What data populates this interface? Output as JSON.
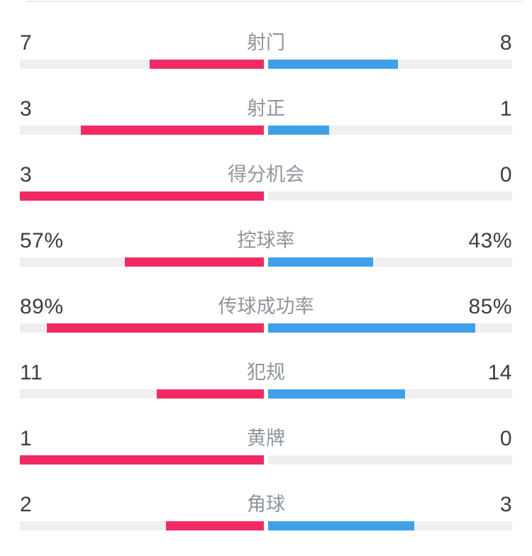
{
  "page": {
    "background": "#ffffff",
    "divider_color": "#ebebeb"
  },
  "chart_data": {
    "type": "bar",
    "orientation": "horizontal-opposed",
    "description": "Football match statistics comparison, home (left, pink) vs away (right, blue); each bar pair splits from the center proportionally to the two values",
    "categories": [
      "射门",
      "射正",
      "得分机会",
      "控球率",
      "传球成功率",
      "犯规",
      "黄牌",
      "角球"
    ],
    "series": [
      {
        "name": "home",
        "color": "#f22a64",
        "values": [
          "7",
          "3",
          "3",
          "57%",
          "89%",
          "11",
          "1",
          "2"
        ]
      },
      {
        "name": "away",
        "color": "#409fe9",
        "values": [
          "8",
          "1",
          "0",
          "43%",
          "85%",
          "14",
          "0",
          "3"
        ]
      }
    ],
    "styles": {
      "track_color": "#efefef",
      "label_color": "#8f959d",
      "value_color": "#3d3d3d",
      "legend": "none",
      "grid": "off"
    }
  }
}
